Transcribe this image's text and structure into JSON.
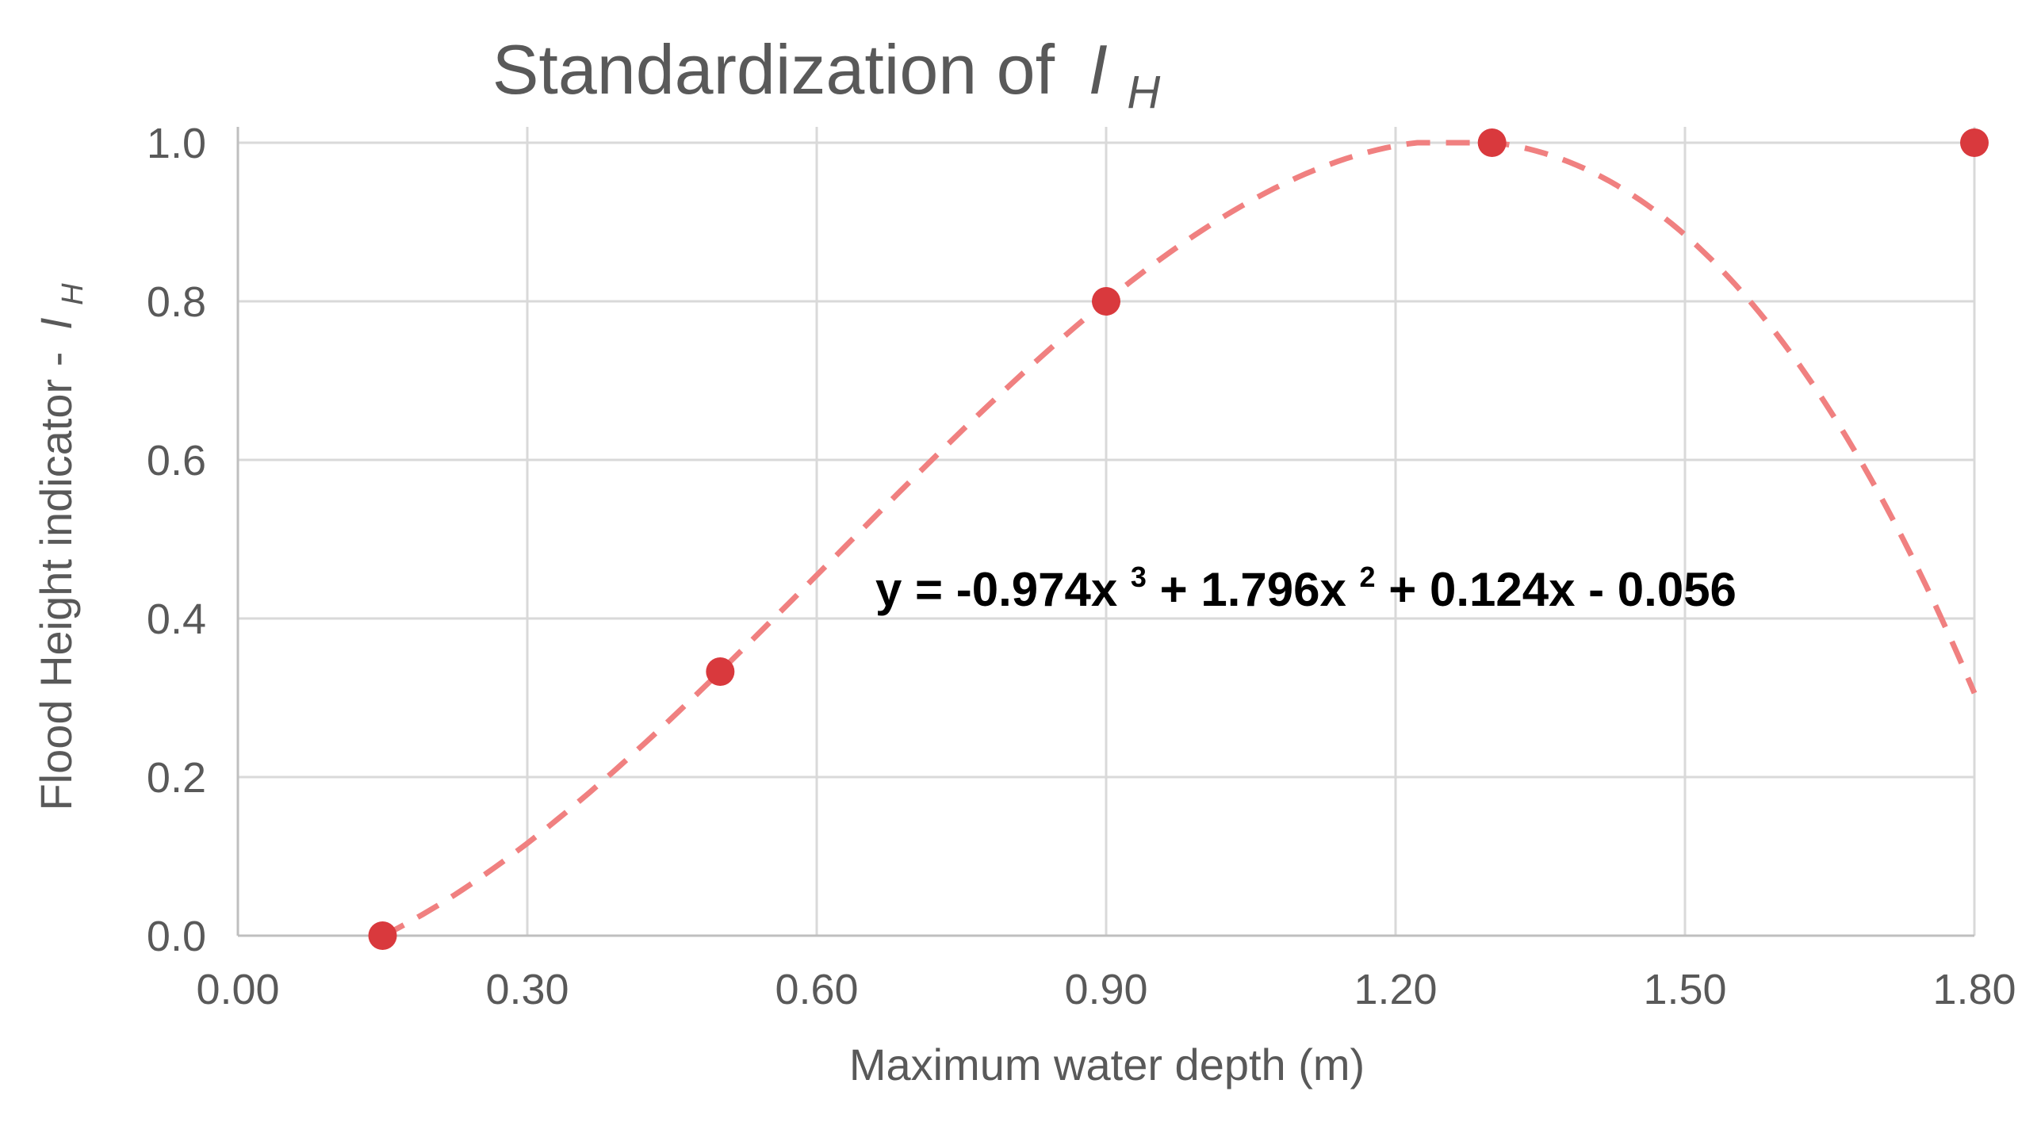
{
  "chart_data": {
    "type": "scatter",
    "title": "Standardization of",
    "title_symbol": "I",
    "title_subscript": "H",
    "xlabel": "Maximum water depth (m)",
    "ylabel": "Flood Height indicator -",
    "ylabel_symbol": "I",
    "ylabel_subscript": "H",
    "xlim": [
      0,
      1.8
    ],
    "ylim": [
      0,
      1.0
    ],
    "x_ticks": [
      "0.00",
      "0.30",
      "0.60",
      "0.90",
      "1.20",
      "1.50",
      "1.80"
    ],
    "x_tick_values": [
      0,
      0.3,
      0.6,
      0.9,
      1.2,
      1.5,
      1.8
    ],
    "y_ticks": [
      "0.0",
      "0.2",
      "0.4",
      "0.6",
      "0.8",
      "1.0"
    ],
    "y_tick_values": [
      0,
      0.2,
      0.4,
      0.6,
      0.8,
      1.0
    ],
    "grid": true,
    "series": [
      {
        "name": "Flood Height indicator",
        "x": [
          0.15,
          0.5,
          0.9,
          1.3,
          1.8
        ],
        "y": [
          0.0,
          0.333,
          0.8,
          1.0,
          1.0
        ],
        "color": "#d9393d"
      }
    ],
    "trendline": {
      "type": "polynomial",
      "coefficients": [
        -0.974,
        1.796,
        0.124,
        -0.056
      ],
      "x_start": 0.15,
      "x_end": 1.8,
      "cap": 1.0,
      "color": "#f08080",
      "style": "dashed",
      "equation": {
        "lead": "y = -0.974x",
        "exp3": "3",
        "mid": " + 1.796x",
        "exp2": "2",
        "tail": " + 0.124x - 0.056"
      }
    }
  }
}
